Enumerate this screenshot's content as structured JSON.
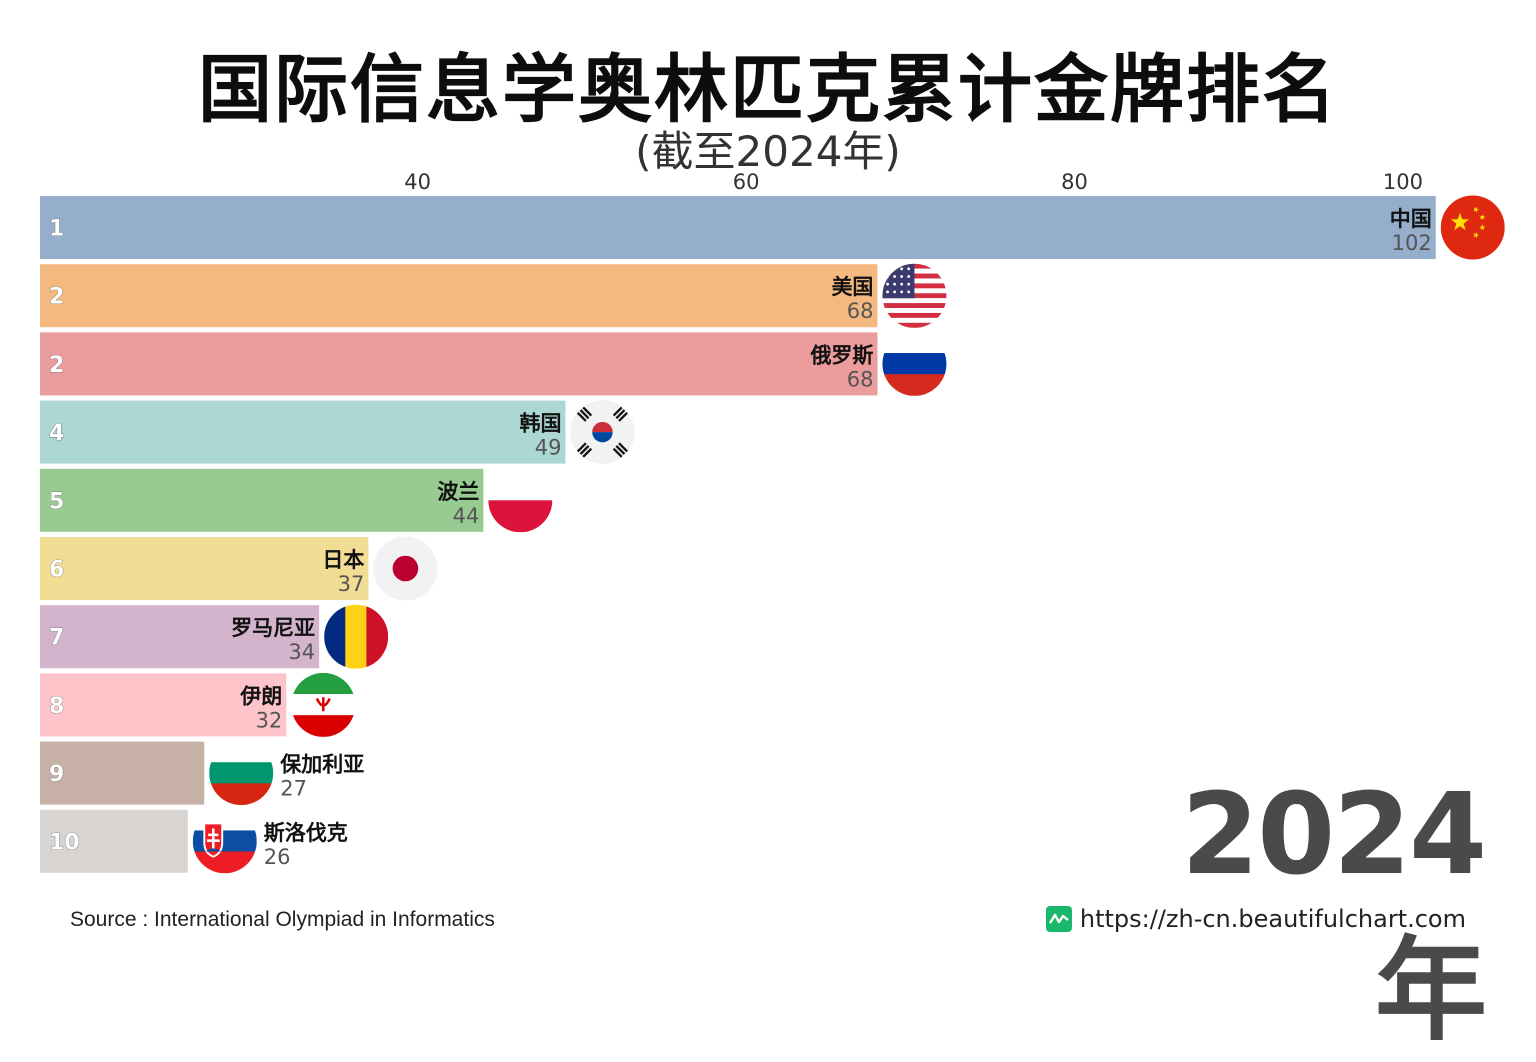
{
  "title": "国际信息学奥林匹克累计金牌排名",
  "subtitle": "(截至2024年)",
  "year_label": "2024年",
  "source": "Source : International Olympiad in Informatics",
  "website": "https://zh-cn.beautifulchart.com",
  "website_icon": "chart-line-icon",
  "chart_data": {
    "type": "bar",
    "orientation": "horizontal",
    "title": "国际信息学奥林匹克累计金牌排名",
    "subtitle": "(截至2024年)",
    "xlim": [
      17,
      105
    ],
    "xticks": [
      40,
      60,
      80,
      100
    ],
    "grid": true,
    "entries": [
      {
        "rank": "1",
        "name": "中国",
        "value": 102,
        "color": "#94aecb",
        "flag": "china-flag-icon"
      },
      {
        "rank": "2",
        "name": "美国",
        "value": 68,
        "color": "#f4b97f",
        "flag": "usa-flag-icon"
      },
      {
        "rank": "2",
        "name": "俄罗斯",
        "value": 68,
        "color": "#eb9c9c",
        "flag": "russia-flag-icon"
      },
      {
        "rank": "4",
        "name": "韩国",
        "value": 49,
        "color": "#acd7d3",
        "flag": "south-korea-flag-icon"
      },
      {
        "rank": "5",
        "name": "波兰",
        "value": 44,
        "color": "#98cb91",
        "flag": "poland-flag-icon"
      },
      {
        "rank": "6",
        "name": "日本",
        "value": 37,
        "color": "#f1dd93",
        "flag": "japan-flag-icon"
      },
      {
        "rank": "7",
        "name": "罗马尼亚",
        "value": 34,
        "color": "#d4b4cc",
        "flag": "romania-flag-icon"
      },
      {
        "rank": "8",
        "name": "伊朗",
        "value": 32,
        "color": "#fdc4ca",
        "flag": "iran-flag-icon"
      },
      {
        "rank": "9",
        "name": "保加利亚",
        "value": 27,
        "color": "#c7b1a6",
        "flag": "bulgaria-flag-icon"
      },
      {
        "rank": "10",
        "name": "斯洛伐克",
        "value": 26,
        "color": "#d7d4d2",
        "flag": "slovakia-flag-icon"
      }
    ]
  }
}
